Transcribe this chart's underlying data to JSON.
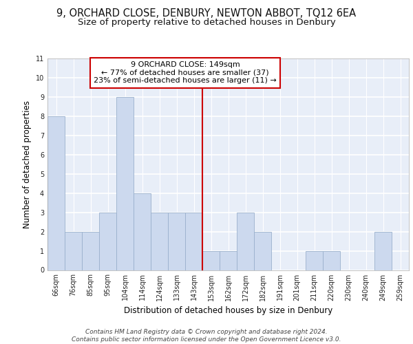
{
  "title": "9, ORCHARD CLOSE, DENBURY, NEWTON ABBOT, TQ12 6EA",
  "subtitle": "Size of property relative to detached houses in Denbury",
  "xlabel": "Distribution of detached houses by size in Denbury",
  "ylabel": "Number of detached properties",
  "categories": [
    "66sqm",
    "76sqm",
    "85sqm",
    "95sqm",
    "104sqm",
    "114sqm",
    "124sqm",
    "133sqm",
    "143sqm",
    "153sqm",
    "162sqm",
    "172sqm",
    "182sqm",
    "191sqm",
    "201sqm",
    "211sqm",
    "220sqm",
    "230sqm",
    "240sqm",
    "249sqm",
    "259sqm"
  ],
  "values": [
    8,
    2,
    2,
    3,
    9,
    4,
    3,
    3,
    3,
    1,
    1,
    3,
    2,
    0,
    0,
    1,
    1,
    0,
    0,
    2,
    0
  ],
  "bar_color": "#ccd9ee",
  "bar_edge_color": "#9ab0cc",
  "reference_line_color": "#cc0000",
  "annotation_box_text": "9 ORCHARD CLOSE: 149sqm\n← 77% of detached houses are smaller (37)\n23% of semi-detached houses are larger (11) →",
  "annotation_box_color": "#ffffff",
  "annotation_box_edge_color": "#cc0000",
  "ylim": [
    0,
    11
  ],
  "yticks": [
    0,
    1,
    2,
    3,
    4,
    5,
    6,
    7,
    8,
    9,
    10,
    11
  ],
  "footer_line1": "Contains HM Land Registry data © Crown copyright and database right 2024.",
  "footer_line2": "Contains public sector information licensed under the Open Government Licence v3.0.",
  "bg_color": "#e8eef8",
  "grid_color": "#ffffff",
  "title_fontsize": 10.5,
  "subtitle_fontsize": 9.5,
  "axis_label_fontsize": 8.5,
  "tick_fontsize": 7,
  "annotation_fontsize": 8,
  "footer_fontsize": 6.5
}
